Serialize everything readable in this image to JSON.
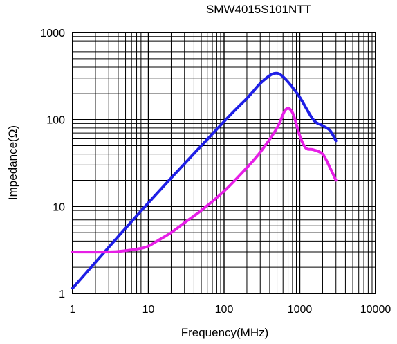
{
  "chart_data": {
    "type": "line",
    "title": "SMW4015S101NTT",
    "xlabel": "Frequency(MHz)",
    "ylabel": "Impedance(Ω)",
    "x_scale": "log",
    "y_scale": "log",
    "xlim": [
      1,
      10000
    ],
    "ylim": [
      1,
      1000
    ],
    "grid": true,
    "x_ticks": [
      "1",
      "10",
      "100",
      "1000",
      "10000"
    ],
    "y_ticks": [
      "1",
      "10",
      "100",
      "1000"
    ],
    "colors": {
      "series_1": "#1f1fe6",
      "series_2": "#e61fe6"
    },
    "series": [
      {
        "x": [
          1,
          10,
          100,
          200,
          300,
          400,
          470,
          550,
          700,
          1000,
          1500,
          2000,
          2500,
          3000
        ],
        "y": [
          1.15,
          11,
          95,
          175,
          260,
          320,
          340,
          330,
          270,
          180,
          100,
          85,
          75,
          57
        ]
      },
      {
        "x": [
          1,
          3,
          5,
          8,
          10,
          15,
          20,
          30,
          50,
          100,
          200,
          300,
          500,
          650,
          800,
          1000,
          1200,
          1500,
          2000,
          2500,
          3000
        ],
        "y": [
          3.0,
          3.0,
          3.1,
          3.3,
          3.5,
          4.3,
          5.0,
          6.5,
          9.0,
          15,
          28,
          42,
          80,
          130,
          120,
          65,
          47,
          45,
          40,
          28,
          20
        ]
      }
    ]
  }
}
